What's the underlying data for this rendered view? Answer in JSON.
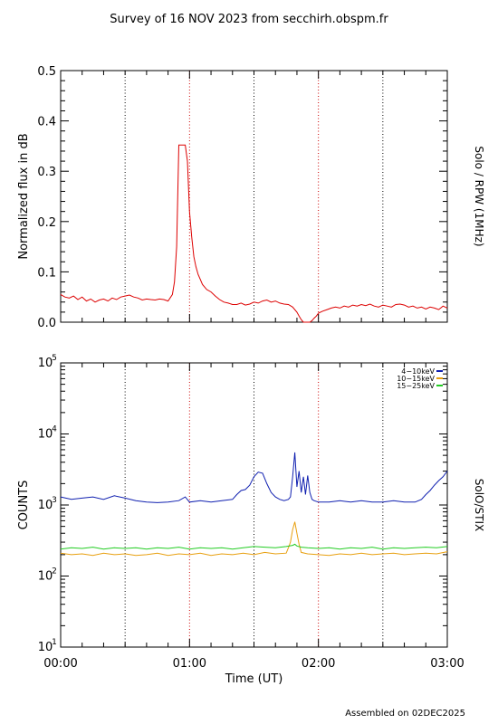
{
  "header": {
    "title": "Survey of 16 NOV 2023 from secchirh.obspm.fr"
  },
  "footer": {
    "assembled": "Assembled on 02DEC2025"
  },
  "colors": {
    "rpw": "#dd0000",
    "band1": "#1020b0",
    "band2": "#e8a010",
    "band3": "#22cc22",
    "grid": "#cc0000",
    "grid_alt": "#000000"
  },
  "chart_data": [
    {
      "type": "line",
      "title": "",
      "xlabel": "",
      "ylabel": "Normalized flux in dB",
      "right_label": "Solo / RPW (1MHz)",
      "xlim": [
        0,
        180
      ],
      "ylim": [
        0,
        0.5
      ],
      "yticks": [
        {
          "value": 0.0,
          "label": "0.0"
        },
        {
          "value": 0.1,
          "label": "0.1"
        },
        {
          "value": 0.2,
          "label": "0.2"
        },
        {
          "value": 0.3,
          "label": "0.3"
        },
        {
          "value": 0.4,
          "label": "0.4"
        },
        {
          "value": 0.5,
          "label": "0.5"
        }
      ],
      "xticks": [
        0,
        60,
        120,
        180
      ],
      "grid_minutes": [
        30,
        60,
        90,
        120,
        150
      ],
      "series": [
        {
          "color": "#dd0000",
          "x": [
            0,
            2,
            4,
            6,
            8,
            10,
            12,
            14,
            16,
            18,
            20,
            22,
            24,
            26,
            28,
            30,
            32,
            34,
            36,
            38,
            40,
            42,
            44,
            46,
            48,
            50,
            52,
            53,
            54,
            55,
            56,
            57,
            58,
            59,
            60,
            61,
            62,
            63,
            64,
            65,
            66,
            68,
            70,
            72,
            74,
            76,
            78,
            80,
            82,
            84,
            86,
            88,
            90,
            92,
            94,
            96,
            98,
            100,
            102,
            104,
            106,
            108,
            110,
            111,
            112,
            113,
            114,
            115,
            116,
            117,
            118,
            119,
            120,
            121,
            122,
            124,
            126,
            128,
            130,
            132,
            134,
            136,
            138,
            140,
            142,
            144,
            146,
            148,
            150,
            152,
            154,
            156,
            158,
            160,
            162,
            164,
            166,
            168,
            170,
            172,
            174,
            176,
            178,
            180
          ],
          "y": [
            0.055,
            0.05,
            0.048,
            0.052,
            0.045,
            0.05,
            0.042,
            0.046,
            0.04,
            0.044,
            0.046,
            0.042,
            0.048,
            0.045,
            0.05,
            0.052,
            0.054,
            0.05,
            0.048,
            0.044,
            0.046,
            0.045,
            0.044,
            0.046,
            0.045,
            0.042,
            0.055,
            0.08,
            0.15,
            0.352,
            0.352,
            0.352,
            0.352,
            0.32,
            0.22,
            0.17,
            0.13,
            0.11,
            0.095,
            0.085,
            0.075,
            0.065,
            0.06,
            0.052,
            0.045,
            0.04,
            0.038,
            0.035,
            0.035,
            0.038,
            0.034,
            0.036,
            0.04,
            0.038,
            0.042,
            0.044,
            0.04,
            0.042,
            0.038,
            0.036,
            0.035,
            0.03,
            0.02,
            0.012,
            0.005,
            0.0,
            0.0,
            0.0,
            0.0,
            0.003,
            0.008,
            0.012,
            0.018,
            0.02,
            0.022,
            0.025,
            0.028,
            0.03,
            0.028,
            0.032,
            0.03,
            0.034,
            0.032,
            0.035,
            0.033,
            0.036,
            0.032,
            0.03,
            0.034,
            0.032,
            0.03,
            0.035,
            0.036,
            0.034,
            0.03,
            0.032,
            0.028,
            0.03,
            0.026,
            0.03,
            0.028,
            0.025,
            0.032,
            0.028
          ]
        }
      ]
    },
    {
      "type": "line",
      "title": "",
      "xlabel": "Time (UT)",
      "ylabel": "COUNTS",
      "right_label": "SolO/STIX",
      "xlim": [
        0,
        180
      ],
      "ylim": [
        10,
        100000
      ],
      "log_y": true,
      "yticks": [
        {
          "base": "10",
          "exp": "1",
          "value": 10
        },
        {
          "base": "10",
          "exp": "2",
          "value": 100
        },
        {
          "base": "10",
          "exp": "3",
          "value": 1000
        },
        {
          "base": "10",
          "exp": "4",
          "value": 10000
        },
        {
          "base": "10",
          "exp": "5",
          "value": 100000
        }
      ],
      "xticks": [
        {
          "value": 0,
          "label": "00:00"
        },
        {
          "value": 60,
          "label": "01:00"
        },
        {
          "value": 120,
          "label": "02:00"
        },
        {
          "value": 180,
          "label": "03:00"
        }
      ],
      "grid_minutes": [
        30,
        60,
        90,
        120,
        150
      ],
      "legend_position": "top-right",
      "series": [
        {
          "name": "4−10keV",
          "color": "#1020b0",
          "x": [
            0,
            5,
            10,
            15,
            20,
            25,
            30,
            35,
            40,
            45,
            50,
            55,
            58,
            60,
            65,
            70,
            75,
            80,
            82,
            84,
            86,
            88,
            90,
            92,
            94,
            96,
            98,
            100,
            102,
            104,
            106,
            107,
            108,
            109,
            110,
            111,
            112,
            113,
            114,
            115,
            116,
            117,
            118,
            120,
            125,
            130,
            135,
            140,
            145,
            150,
            155,
            160,
            165,
            168,
            170,
            172,
            174,
            176,
            178,
            180
          ],
          "y": [
            1300,
            1200,
            1250,
            1300,
            1200,
            1350,
            1250,
            1150,
            1100,
            1080,
            1100,
            1150,
            1300,
            1100,
            1150,
            1100,
            1150,
            1200,
            1400,
            1600,
            1650,
            1900,
            2500,
            2900,
            2800,
            2000,
            1500,
            1300,
            1200,
            1150,
            1200,
            1300,
            2500,
            5500,
            1800,
            3000,
            1500,
            2500,
            1400,
            2600,
            1500,
            1200,
            1150,
            1100,
            1100,
            1150,
            1100,
            1150,
            1100,
            1100,
            1150,
            1100,
            1100,
            1200,
            1400,
            1600,
            1900,
            2200,
            2500,
            3000
          ]
        },
        {
          "name": "10−15keV",
          "color": "#e8a010",
          "x": [
            0,
            5,
            10,
            15,
            20,
            25,
            30,
            35,
            40,
            45,
            50,
            55,
            60,
            65,
            70,
            75,
            80,
            85,
            90,
            95,
            100,
            105,
            106,
            107,
            108,
            109,
            110,
            111,
            112,
            115,
            120,
            125,
            130,
            135,
            140,
            145,
            150,
            155,
            160,
            165,
            170,
            175,
            180
          ],
          "y": [
            210,
            200,
            205,
            195,
            210,
            200,
            205,
            195,
            200,
            210,
            195,
            205,
            200,
            210,
            195,
            205,
            200,
            210,
            200,
            215,
            205,
            210,
            250,
            300,
            450,
            580,
            400,
            280,
            215,
            205,
            200,
            195,
            205,
            200,
            210,
            200,
            205,
            210,
            200,
            205,
            210,
            205,
            220
          ]
        },
        {
          "name": "15−25keV",
          "color": "#22cc22",
          "x": [
            0,
            5,
            10,
            15,
            20,
            25,
            30,
            35,
            40,
            45,
            50,
            55,
            60,
            65,
            70,
            75,
            80,
            85,
            90,
            95,
            100,
            105,
            108,
            109,
            110,
            112,
            115,
            120,
            125,
            130,
            135,
            140,
            145,
            150,
            155,
            160,
            165,
            170,
            175,
            180
          ],
          "y": [
            240,
            250,
            245,
            255,
            240,
            250,
            245,
            250,
            240,
            250,
            245,
            255,
            240,
            250,
            245,
            250,
            240,
            250,
            260,
            255,
            250,
            260,
            270,
            280,
            265,
            255,
            250,
            245,
            250,
            240,
            250,
            245,
            255,
            240,
            250,
            245,
            250,
            255,
            250,
            260
          ]
        }
      ]
    }
  ]
}
